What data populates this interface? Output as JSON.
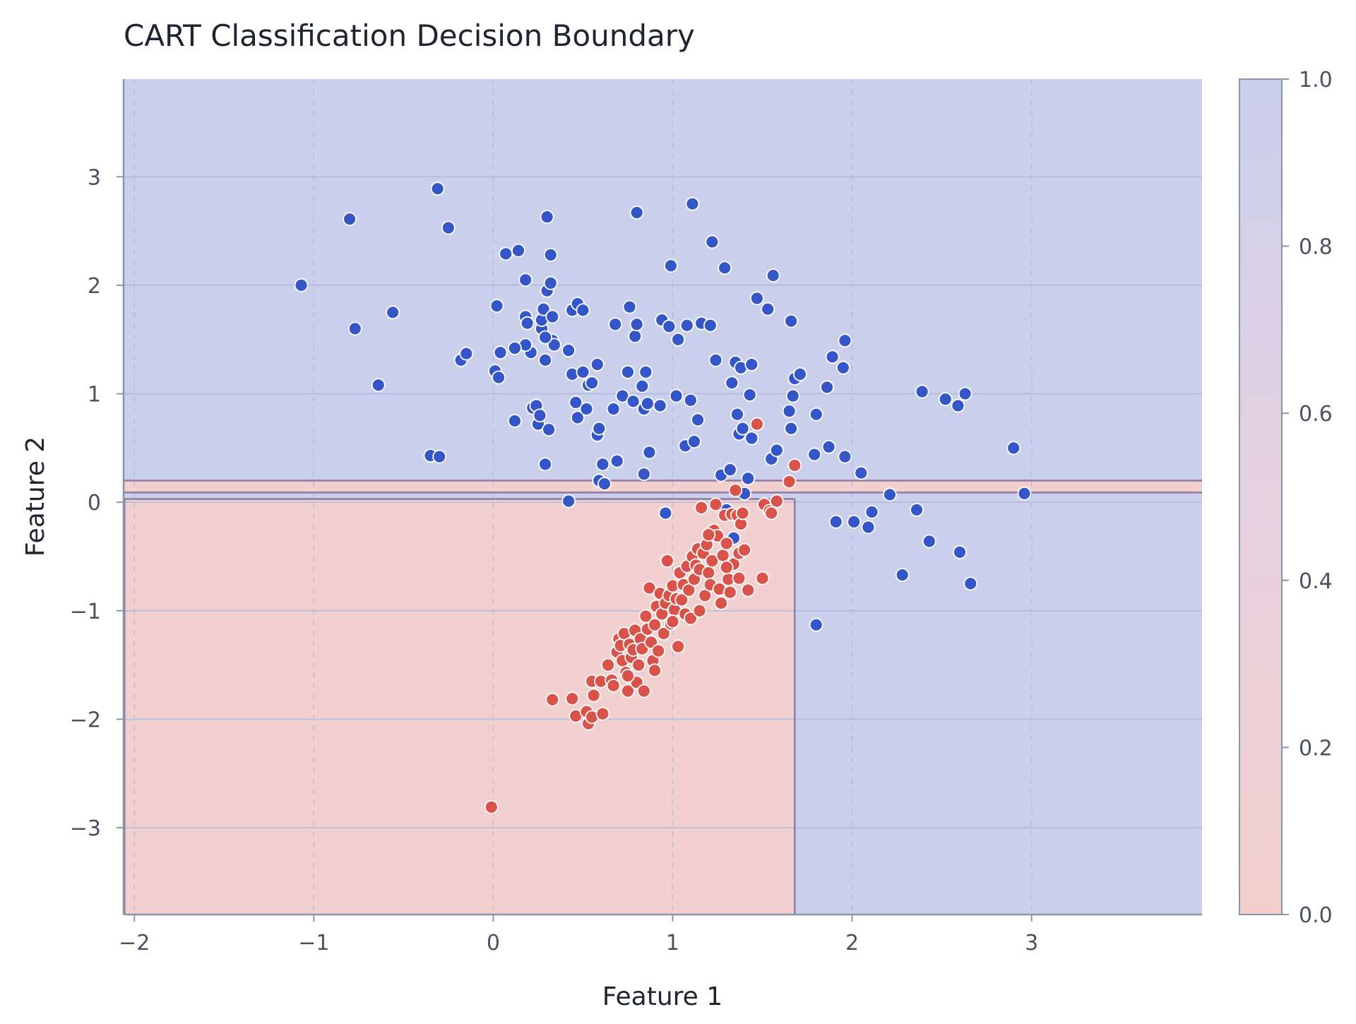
{
  "chart_data": {
    "type": "scatter",
    "title": "CART Classification Decision Boundary",
    "xlabel": "Feature 1",
    "ylabel": "Feature 2",
    "xlim": [
      -2.06,
      3.95
    ],
    "ylim": [
      -3.8,
      3.9
    ],
    "xticks": [
      -2,
      -1,
      0,
      1,
      2,
      3
    ],
    "yticks": [
      -3,
      -2,
      -1,
      0,
      1,
      2,
      3
    ],
    "xtick_labels": [
      "−2",
      "−1",
      "0",
      "1",
      "2",
      "3"
    ],
    "ytick_labels": [
      "−3",
      "−2",
      "−1",
      "0",
      "1",
      "2",
      "3"
    ],
    "grid": true,
    "colorbar": {
      "range": [
        0,
        1
      ],
      "ticks": [
        0.0,
        0.2,
        0.4,
        0.6,
        0.8,
        1.0
      ],
      "tick_labels": [
        "0.0",
        "0.2",
        "0.4",
        "0.6",
        "0.8",
        "1.0"
      ]
    },
    "colors": {
      "class0_point": "#d9534a",
      "class1_point": "#3556c8",
      "class0_region": "#f2d0cf",
      "class1_region": "#cacfec",
      "boundary": "#8f7ba0",
      "grid": "#a9b7dc",
      "axis": "#8a95a8"
    },
    "regions": [
      {
        "class": 1,
        "x": [
          -2.06,
          3.95
        ],
        "y": [
          0.2,
          3.9
        ]
      },
      {
        "class": 0,
        "x": [
          -2.06,
          3.95
        ],
        "y": [
          0.09,
          0.2
        ]
      },
      {
        "class": 1,
        "x": [
          -2.06,
          3.95
        ],
        "y": [
          0.03,
          0.09
        ]
      },
      {
        "class": 0,
        "x": [
          -2.06,
          1.68
        ],
        "y": [
          -3.8,
          0.03
        ]
      },
      {
        "class": 1,
        "x": [
          1.68,
          3.95
        ],
        "y": [
          -3.8,
          0.03
        ]
      }
    ],
    "series": [
      {
        "class": 1,
        "points": [
          [
            -1.07,
            2.0
          ],
          [
            -0.8,
            2.61
          ],
          [
            -0.77,
            1.6
          ],
          [
            -0.64,
            1.08
          ],
          [
            -0.56,
            1.75
          ],
          [
            -0.31,
            2.89
          ],
          [
            -0.25,
            2.53
          ],
          [
            -0.18,
            1.31
          ],
          [
            -0.15,
            1.37
          ],
          [
            -0.35,
            0.43
          ],
          [
            -0.3,
            0.42
          ],
          [
            0.01,
            1.21
          ],
          [
            0.02,
            1.81
          ],
          [
            0.03,
            1.15
          ],
          [
            0.04,
            1.38
          ],
          [
            0.07,
            2.29
          ],
          [
            0.12,
            0.75
          ],
          [
            0.14,
            2.32
          ],
          [
            0.18,
            2.05
          ],
          [
            0.18,
            1.71
          ],
          [
            0.19,
            1.65
          ],
          [
            0.21,
            1.38
          ],
          [
            0.22,
            0.87
          ],
          [
            0.24,
            0.89
          ],
          [
            0.25,
            0.72
          ],
          [
            0.26,
            0.8
          ],
          [
            0.27,
            1.6
          ],
          [
            0.27,
            1.68
          ],
          [
            0.28,
            1.78
          ],
          [
            0.29,
            1.31
          ],
          [
            0.29,
            0.35
          ],
          [
            0.3,
            2.63
          ],
          [
            0.3,
            1.95
          ],
          [
            0.31,
            0.67
          ],
          [
            0.32,
            2.02
          ],
          [
            0.32,
            2.28
          ],
          [
            0.33,
            1.71
          ],
          [
            0.33,
            1.49
          ],
          [
            0.34,
            1.45
          ],
          [
            0.18,
            1.45
          ],
          [
            0.12,
            1.42
          ],
          [
            0.29,
            1.52
          ],
          [
            0.42,
            0.01
          ],
          [
            0.42,
            1.4
          ],
          [
            0.44,
            1.18
          ],
          [
            0.44,
            1.77
          ],
          [
            0.46,
            0.92
          ],
          [
            0.47,
            0.78
          ],
          [
            0.47,
            1.83
          ],
          [
            0.5,
            1.2
          ],
          [
            0.5,
            1.77
          ],
          [
            0.52,
            0.86
          ],
          [
            0.53,
            1.08
          ],
          [
            0.55,
            1.1
          ],
          [
            0.58,
            0.62
          ],
          [
            0.58,
            1.27
          ],
          [
            0.59,
            0.68
          ],
          [
            0.59,
            0.2
          ],
          [
            0.61,
            0.35
          ],
          [
            0.62,
            0.17
          ],
          [
            0.67,
            0.86
          ],
          [
            0.68,
            1.64
          ],
          [
            0.69,
            0.38
          ],
          [
            0.72,
            0.98
          ],
          [
            0.75,
            1.2
          ],
          [
            0.76,
            1.8
          ],
          [
            0.78,
            0.93
          ],
          [
            0.79,
            1.53
          ],
          [
            0.8,
            1.64
          ],
          [
            0.8,
            2.67
          ],
          [
            0.83,
            1.07
          ],
          [
            0.84,
            0.86
          ],
          [
            0.85,
            1.2
          ],
          [
            0.86,
            0.91
          ],
          [
            0.87,
            0.46
          ],
          [
            0.84,
            0.26
          ],
          [
            0.93,
            0.89
          ],
          [
            0.94,
            1.68
          ],
          [
            0.96,
            -0.1
          ],
          [
            0.98,
            1.62
          ],
          [
            0.99,
            2.18
          ],
          [
            1.02,
            0.98
          ],
          [
            1.03,
            1.5
          ],
          [
            1.07,
            0.52
          ],
          [
            1.08,
            1.63
          ],
          [
            1.1,
            0.94
          ],
          [
            1.11,
            2.75
          ],
          [
            1.12,
            0.56
          ],
          [
            1.14,
            0.76
          ],
          [
            1.16,
            1.65
          ],
          [
            1.21,
            1.63
          ],
          [
            1.22,
            2.4
          ],
          [
            1.24,
            1.31
          ],
          [
            1.27,
            0.25
          ],
          [
            1.29,
            2.16
          ],
          [
            1.3,
            -0.07
          ],
          [
            1.32,
            0.3
          ],
          [
            1.33,
            1.1
          ],
          [
            1.35,
            1.29
          ],
          [
            1.36,
            0.81
          ],
          [
            1.37,
            0.63
          ],
          [
            1.38,
            1.24
          ],
          [
            1.39,
            0.68
          ],
          [
            1.4,
            0.08
          ],
          [
            1.42,
            0.22
          ],
          [
            1.43,
            0.99
          ],
          [
            1.44,
            1.27
          ],
          [
            1.44,
            0.59
          ],
          [
            1.47,
            1.88
          ],
          [
            1.53,
            1.78
          ],
          [
            1.55,
            0.4
          ],
          [
            1.56,
            2.09
          ],
          [
            1.58,
            0.48
          ],
          [
            1.65,
            0.84
          ],
          [
            1.66,
            1.67
          ],
          [
            1.66,
            0.68
          ],
          [
            1.67,
            0.98
          ],
          [
            1.68,
            1.14
          ],
          [
            1.71,
            1.18
          ],
          [
            1.34,
            -0.33
          ],
          [
            1.79,
            0.44
          ],
          [
            1.8,
            0.81
          ],
          [
            1.8,
            -1.13
          ],
          [
            1.86,
            1.06
          ],
          [
            1.87,
            0.51
          ],
          [
            1.89,
            1.34
          ],
          [
            1.91,
            -0.18
          ],
          [
            1.95,
            1.24
          ],
          [
            1.96,
            1.49
          ],
          [
            1.96,
            0.42
          ],
          [
            2.01,
            -0.18
          ],
          [
            2.05,
            0.27
          ],
          [
            2.09,
            -0.23
          ],
          [
            2.11,
            -0.09
          ],
          [
            2.21,
            0.07
          ],
          [
            2.28,
            -0.67
          ],
          [
            2.36,
            -0.07
          ],
          [
            2.39,
            1.02
          ],
          [
            2.43,
            -0.36
          ],
          [
            2.52,
            0.95
          ],
          [
            2.59,
            0.89
          ],
          [
            2.6,
            -0.46
          ],
          [
            2.63,
            1.0
          ],
          [
            2.66,
            -0.75
          ],
          [
            2.9,
            0.5
          ],
          [
            2.96,
            0.08
          ]
        ]
      },
      {
        "class": 0,
        "points": [
          [
            -0.01,
            -2.81
          ],
          [
            0.33,
            -1.82
          ],
          [
            0.44,
            -1.81
          ],
          [
            0.46,
            -1.97
          ],
          [
            0.52,
            -1.93
          ],
          [
            0.53,
            -2.04
          ],
          [
            0.55,
            -1.98
          ],
          [
            0.55,
            -1.65
          ],
          [
            0.56,
            -1.78
          ],
          [
            0.6,
            -1.65
          ],
          [
            0.61,
            -1.95
          ],
          [
            0.64,
            -1.5
          ],
          [
            0.66,
            -1.64
          ],
          [
            0.67,
            -1.69
          ],
          [
            0.69,
            -1.38
          ],
          [
            0.7,
            -1.26
          ],
          [
            0.71,
            -1.32
          ],
          [
            0.72,
            -1.46
          ],
          [
            0.73,
            -1.21
          ],
          [
            0.74,
            -1.57
          ],
          [
            0.75,
            -1.74
          ],
          [
            0.76,
            -1.31
          ],
          [
            0.77,
            -1.43
          ],
          [
            0.78,
            -1.36
          ],
          [
            0.79,
            -1.18
          ],
          [
            0.8,
            -1.66
          ],
          [
            0.81,
            -1.5
          ],
          [
            0.82,
            -1.26
          ],
          [
            0.83,
            -1.35
          ],
          [
            0.84,
            -1.74
          ],
          [
            0.85,
            -1.05
          ],
          [
            0.86,
            -1.17
          ],
          [
            0.87,
            -0.79
          ],
          [
            0.88,
            -1.29
          ],
          [
            0.89,
            -1.46
          ],
          [
            0.9,
            -1.13
          ],
          [
            0.91,
            -0.96
          ],
          [
            0.92,
            -1.37
          ],
          [
            0.93,
            -0.84
          ],
          [
            0.94,
            -1.03
          ],
          [
            0.95,
            -1.21
          ],
          [
            0.96,
            -0.93
          ],
          [
            0.97,
            -0.54
          ],
          [
            0.98,
            -0.86
          ],
          [
            0.99,
            -1.12
          ],
          [
            1.0,
            -0.77
          ],
          [
            1.01,
            -0.99
          ],
          [
            1.02,
            -0.89
          ],
          [
            1.03,
            -1.33
          ],
          [
            1.04,
            -0.65
          ],
          [
            1.05,
            -0.9
          ],
          [
            1.06,
            -0.76
          ],
          [
            1.07,
            -1.03
          ],
          [
            1.08,
            -0.59
          ],
          [
            1.09,
            -0.81
          ],
          [
            1.1,
            -1.07
          ],
          [
            1.11,
            -0.5
          ],
          [
            1.12,
            -0.71
          ],
          [
            1.13,
            -0.58
          ],
          [
            1.14,
            -0.43
          ],
          [
            1.15,
            -0.62
          ],
          [
            1.16,
            -0.05
          ],
          [
            1.17,
            -0.47
          ],
          [
            1.18,
            -0.86
          ],
          [
            1.19,
            -0.39
          ],
          [
            1.2,
            -0.65
          ],
          [
            1.21,
            -0.76
          ],
          [
            1.22,
            -0.54
          ],
          [
            1.23,
            -0.26
          ],
          [
            1.24,
            -0.02
          ],
          [
            1.25,
            -0.31
          ],
          [
            1.26,
            -0.8
          ],
          [
            1.27,
            -0.93
          ],
          [
            1.28,
            -0.49
          ],
          [
            1.29,
            -0.12
          ],
          [
            1.3,
            -0.38
          ],
          [
            1.31,
            -0.71
          ],
          [
            1.32,
            -0.83
          ],
          [
            1.33,
            -0.11
          ],
          [
            1.34,
            -0.57
          ],
          [
            1.35,
            0.11
          ],
          [
            1.36,
            -0.12
          ],
          [
            1.37,
            -0.47
          ],
          [
            1.38,
            -0.2
          ],
          [
            1.39,
            -0.1
          ],
          [
            1.4,
            -0.44
          ],
          [
            1.42,
            -0.81
          ],
          [
            1.47,
            0.72
          ],
          [
            1.5,
            -0.7
          ],
          [
            1.51,
            -0.02
          ],
          [
            1.54,
            -0.08
          ],
          [
            1.55,
            -0.1
          ],
          [
            1.58,
            0.01
          ],
          [
            1.65,
            0.19
          ],
          [
            1.68,
            0.34
          ],
          [
            1.37,
            -0.7
          ],
          [
            1.15,
            -1.0
          ],
          [
            0.75,
            -1.6
          ],
          [
            0.9,
            -1.55
          ],
          [
            1.0,
            -1.1
          ],
          [
            1.2,
            -0.3
          ],
          [
            1.3,
            -0.6
          ]
        ]
      }
    ]
  }
}
